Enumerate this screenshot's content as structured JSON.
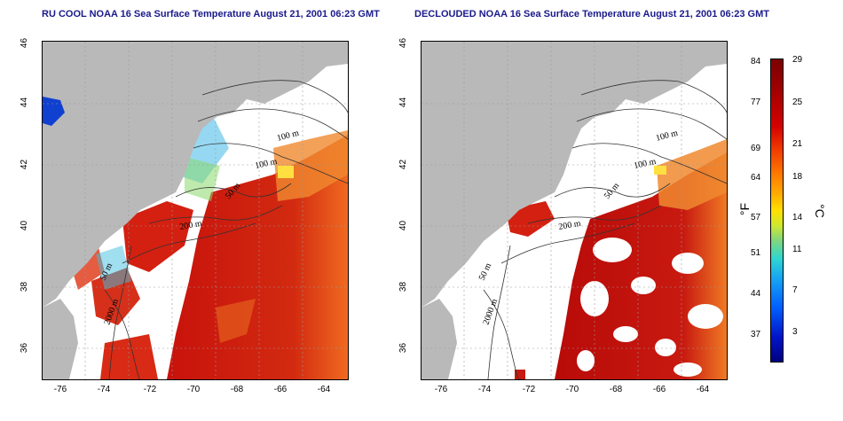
{
  "panels": [
    {
      "title": "RU COOL NOAA 16 Sea Surface Temperature August 21, 2001 06:23 GMT",
      "x_ticks": [
        "-76",
        "-74",
        "-72",
        "-70",
        "-68",
        "-66",
        "-64"
      ],
      "y_ticks": [
        "46",
        "44",
        "42",
        "40",
        "38",
        "36"
      ],
      "contour_labels": [
        "100 m",
        "100 m",
        "50 m",
        "200 m",
        "50 m",
        "2000 m"
      ]
    },
    {
      "title": "DECLOUDED NOAA 16 Sea Surface Temperature August 21, 2001 06:23 GMT",
      "x_ticks": [
        "-76",
        "-74",
        "-72",
        "-70",
        "-68",
        "-66",
        "-64"
      ],
      "y_ticks": [
        "46",
        "44",
        "42",
        "40",
        "38",
        "36"
      ],
      "contour_labels": [
        "100 m",
        "100 m",
        "50 m",
        "200 m",
        "50 m",
        "2000 m"
      ]
    }
  ],
  "colorbar": {
    "f_labels": [
      "84",
      "77",
      "69",
      "64",
      "57",
      "51",
      "44",
      "37"
    ],
    "c_labels": [
      "29",
      "25",
      "21",
      "18",
      "14",
      "11",
      "7",
      "3"
    ],
    "f_unit": "°F",
    "c_unit": "°C"
  },
  "colors": {
    "land": "#b9b9b9",
    "warm_sst": "#c81a10",
    "title": "#1a1a8c"
  }
}
